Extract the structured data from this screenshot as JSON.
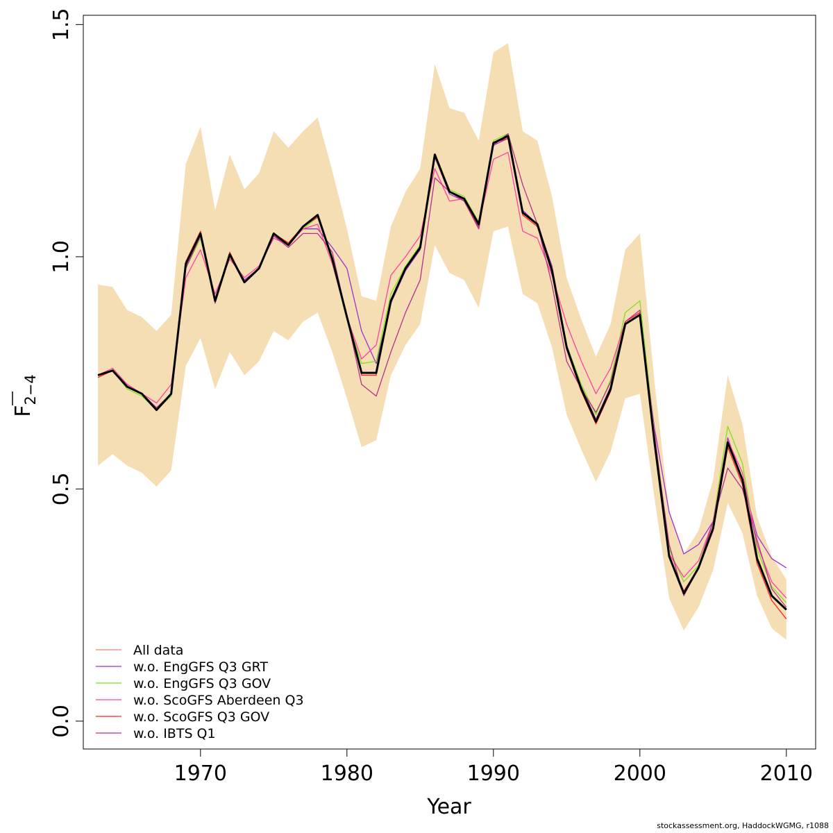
{
  "chart_data": {
    "type": "line",
    "xlabel": "Year",
    "ylabel_main": "F",
    "ylabel_sub": "2−4",
    "xlim": [
      1962,
      2012
    ],
    "ylim": [
      -0.06,
      1.52
    ],
    "xticks": [
      1970,
      1980,
      1990,
      2000,
      2010
    ],
    "yticks": [
      0.0,
      0.5,
      1.0,
      1.5
    ],
    "ytick_labels": [
      "0.0",
      "0.5",
      "1.0",
      "1.5"
    ],
    "grid": false,
    "legend_placement": "bottom-left",
    "band": {
      "color": "#f5deb3",
      "x": [
        1963,
        1964,
        1965,
        1966,
        1967,
        1968,
        1969,
        1970,
        1971,
        1972,
        1973,
        1974,
        1975,
        1976,
        1977,
        1978,
        1979,
        1980,
        1981,
        1982,
        1983,
        1984,
        1985,
        1986,
        1987,
        1988,
        1989,
        1990,
        1991,
        1992,
        1993,
        1994,
        1995,
        1996,
        1997,
        1998,
        1999,
        2000,
        2001,
        2002,
        2003,
        2004,
        2005,
        2006,
        2007,
        2008,
        2009,
        2010
      ],
      "upper": [
        0.94,
        0.935,
        0.885,
        0.87,
        0.84,
        0.875,
        1.2,
        1.28,
        1.1,
        1.22,
        1.145,
        1.18,
        1.27,
        1.235,
        1.27,
        1.3,
        1.185,
        1.06,
        0.915,
        0.905,
        1.065,
        1.14,
        1.19,
        1.415,
        1.32,
        1.31,
        1.25,
        1.44,
        1.46,
        1.27,
        1.25,
        1.13,
        0.955,
        0.865,
        0.785,
        0.855,
        1.015,
        1.05,
        0.73,
        0.45,
        0.36,
        0.41,
        0.52,
        0.745,
        0.64,
        0.44,
        0.355,
        0.305
      ],
      "lower": [
        0.55,
        0.575,
        0.55,
        0.535,
        0.505,
        0.54,
        0.765,
        0.825,
        0.715,
        0.795,
        0.745,
        0.775,
        0.84,
        0.82,
        0.86,
        0.88,
        0.795,
        0.695,
        0.59,
        0.605,
        0.745,
        0.81,
        0.855,
        1.025,
        0.965,
        0.95,
        0.89,
        1.055,
        1.065,
        0.92,
        0.9,
        0.805,
        0.66,
        0.585,
        0.515,
        0.58,
        0.695,
        0.705,
        0.48,
        0.265,
        0.195,
        0.245,
        0.325,
        0.47,
        0.405,
        0.27,
        0.2,
        0.175
      ]
    },
    "x": [
      1963,
      1964,
      1965,
      1966,
      1967,
      1968,
      1969,
      1970,
      1971,
      1972,
      1973,
      1974,
      1975,
      1976,
      1977,
      1978,
      1979,
      1980,
      1981,
      1982,
      1983,
      1984,
      1985,
      1986,
      1987,
      1988,
      1989,
      1990,
      1991,
      1992,
      1993,
      1994,
      1995,
      1996,
      1997,
      1998,
      1999,
      2000,
      2001,
      2002,
      2003,
      2004,
      2005,
      2006,
      2007,
      2008,
      2009,
      2010
    ],
    "main_series": {
      "color": "#000000",
      "values": [
        0.745,
        0.755,
        0.72,
        0.705,
        0.67,
        0.705,
        0.985,
        1.05,
        0.905,
        1.005,
        0.945,
        0.975,
        1.05,
        1.025,
        1.065,
        1.09,
        0.995,
        0.87,
        0.75,
        0.75,
        0.905,
        0.975,
        1.02,
        1.22,
        1.14,
        1.125,
        1.07,
        1.245,
        1.26,
        1.095,
        1.07,
        0.97,
        0.805,
        0.715,
        0.645,
        0.715,
        0.855,
        0.875,
        0.6,
        0.355,
        0.275,
        0.33,
        0.415,
        0.6,
        0.52,
        0.35,
        0.27,
        0.24
      ]
    },
    "series": [
      {
        "name": "All data",
        "color": "#f08070",
        "values": [
          0.745,
          0.755,
          0.72,
          0.705,
          0.67,
          0.705,
          0.985,
          1.05,
          0.905,
          1.005,
          0.945,
          0.975,
          1.05,
          1.025,
          1.065,
          1.09,
          0.995,
          0.87,
          0.75,
          0.75,
          0.905,
          0.975,
          1.02,
          1.22,
          1.14,
          1.125,
          1.07,
          1.245,
          1.26,
          1.095,
          1.07,
          0.97,
          0.805,
          0.715,
          0.645,
          0.715,
          0.855,
          0.875,
          0.6,
          0.355,
          0.275,
          0.33,
          0.415,
          0.6,
          0.52,
          0.35,
          0.27,
          0.24
        ]
      },
      {
        "name": "w.o. EngGFS Q3 GRT",
        "color": "#9b30d0",
        "values": [
          0.745,
          0.755,
          0.725,
          0.705,
          0.675,
          0.705,
          0.98,
          1.05,
          0.91,
          1.005,
          0.95,
          0.975,
          1.045,
          1.025,
          1.06,
          1.06,
          1.02,
          0.975,
          0.84,
          0.77,
          0.9,
          0.97,
          1.015,
          1.215,
          1.135,
          1.12,
          1.065,
          1.24,
          1.255,
          1.1,
          1.07,
          0.98,
          0.81,
          0.72,
          0.65,
          0.72,
          0.855,
          0.875,
          0.63,
          0.45,
          0.36,
          0.38,
          0.43,
          0.61,
          0.52,
          0.4,
          0.35,
          0.33
        ]
      },
      {
        "name": "w.o. EngGFS Q3 GOV",
        "color": "#80e020",
        "values": [
          0.74,
          0.755,
          0.715,
          0.7,
          0.67,
          0.7,
          0.975,
          1.04,
          0.9,
          1.0,
          0.945,
          0.975,
          1.05,
          1.025,
          1.06,
          1.085,
          0.99,
          0.865,
          0.77,
          0.775,
          0.92,
          0.98,
          1.025,
          1.22,
          1.145,
          1.13,
          1.075,
          1.25,
          1.265,
          1.095,
          1.07,
          0.975,
          0.81,
          0.725,
          0.66,
          0.735,
          0.88,
          0.905,
          0.62,
          0.37,
          0.3,
          0.335,
          0.43,
          0.635,
          0.555,
          0.37,
          0.29,
          0.255
        ]
      },
      {
        "name": "w.o. ScoGFS Aberdeen Q3",
        "color": "#ff40a0",
        "values": [
          0.745,
          0.76,
          0.725,
          0.705,
          0.685,
          0.725,
          0.955,
          1.015,
          0.92,
          0.995,
          0.955,
          0.98,
          1.04,
          1.025,
          1.06,
          1.07,
          0.985,
          0.87,
          0.78,
          0.81,
          0.96,
          1.0,
          1.045,
          1.19,
          1.12,
          1.125,
          1.07,
          1.21,
          1.225,
          1.055,
          1.04,
          0.96,
          0.855,
          0.775,
          0.705,
          0.76,
          0.86,
          0.88,
          0.62,
          0.36,
          0.31,
          0.345,
          0.43,
          0.605,
          0.535,
          0.38,
          0.3,
          0.265
        ]
      },
      {
        "name": "w.o. ScoGFS Q3 GOV",
        "color": "#ff2020",
        "values": [
          0.74,
          0.755,
          0.72,
          0.705,
          0.67,
          0.705,
          0.99,
          1.055,
          0.905,
          1.01,
          0.945,
          0.975,
          1.05,
          1.03,
          1.065,
          1.085,
          0.995,
          0.87,
          0.745,
          0.745,
          0.905,
          0.975,
          1.02,
          1.22,
          1.14,
          1.125,
          1.06,
          1.245,
          1.255,
          1.09,
          1.065,
          0.965,
          0.8,
          0.71,
          0.64,
          0.71,
          0.86,
          0.88,
          0.6,
          0.355,
          0.28,
          0.33,
          0.41,
          0.59,
          0.51,
          0.34,
          0.26,
          0.22
        ]
      },
      {
        "name": "w.o. IBTS Q1",
        "color": "#b5308a",
        "values": [
          0.745,
          0.755,
          0.72,
          0.705,
          0.675,
          0.705,
          0.975,
          1.045,
          0.9,
          1.005,
          0.945,
          0.975,
          1.045,
          1.02,
          1.05,
          1.05,
          1.01,
          0.87,
          0.725,
          0.7,
          0.795,
          0.88,
          0.95,
          1.17,
          1.14,
          1.12,
          1.06,
          1.24,
          1.265,
          1.155,
          1.07,
          0.94,
          0.775,
          0.715,
          0.665,
          0.73,
          0.86,
          0.885,
          0.61,
          0.38,
          0.27,
          0.33,
          0.43,
          0.545,
          0.5,
          0.39,
          0.285,
          0.245
        ]
      }
    ]
  },
  "credit": "stockassessment.org, HaddockWGMG, r1088"
}
